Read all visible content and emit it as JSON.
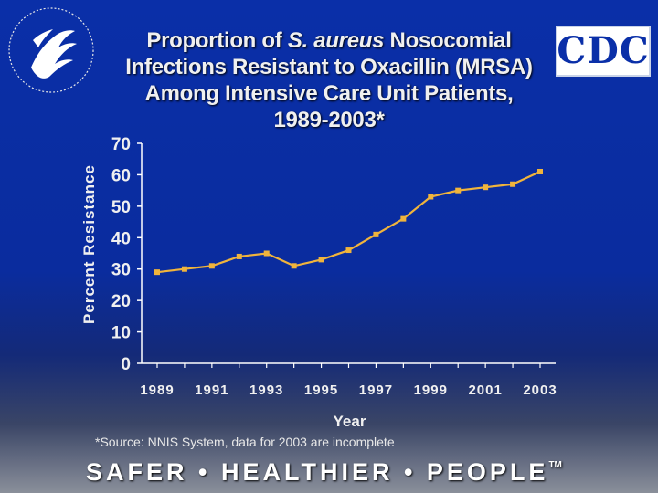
{
  "title": {
    "line1_pre": "Proportion of ",
    "line1_italic": "S. aureus",
    "line1_post": " Nosocomial",
    "line2": "Infections Resistant to Oxacillin (MRSA)",
    "line3": "Among Intensive Care Unit Patients,",
    "line4": "1989-2003*"
  },
  "logos": {
    "cdc": "CDC"
  },
  "footnote": "*Source: NNIS System, data for 2003 are incomplete",
  "tagline": "SAFER • HEALTHIER • PEOPLE",
  "tagline_mark": "TM",
  "colors": {
    "background": "#0a2fa8",
    "line": "#f0b43c",
    "text": "#f0f0f0",
    "axis": "#ffffff"
  },
  "chart_data": {
    "type": "line",
    "xlabel": "Year",
    "ylabel": "Percent Resistance",
    "ylim": [
      0,
      70
    ],
    "yticks": [
      0,
      10,
      20,
      30,
      40,
      50,
      60,
      70
    ],
    "xlim": [
      1989,
      2003
    ],
    "xticks": [
      "1989",
      "1991",
      "1993",
      "1995",
      "1997",
      "1999",
      "2001",
      "2003"
    ],
    "grid": false,
    "x": [
      1989,
      1990,
      1991,
      1992,
      1993,
      1994,
      1995,
      1996,
      1997,
      1998,
      1999,
      2000,
      2001,
      2002,
      2003
    ],
    "values": [
      29,
      30,
      31,
      34,
      35,
      31,
      33,
      36,
      41,
      46,
      53,
      55,
      56,
      57,
      61
    ]
  }
}
